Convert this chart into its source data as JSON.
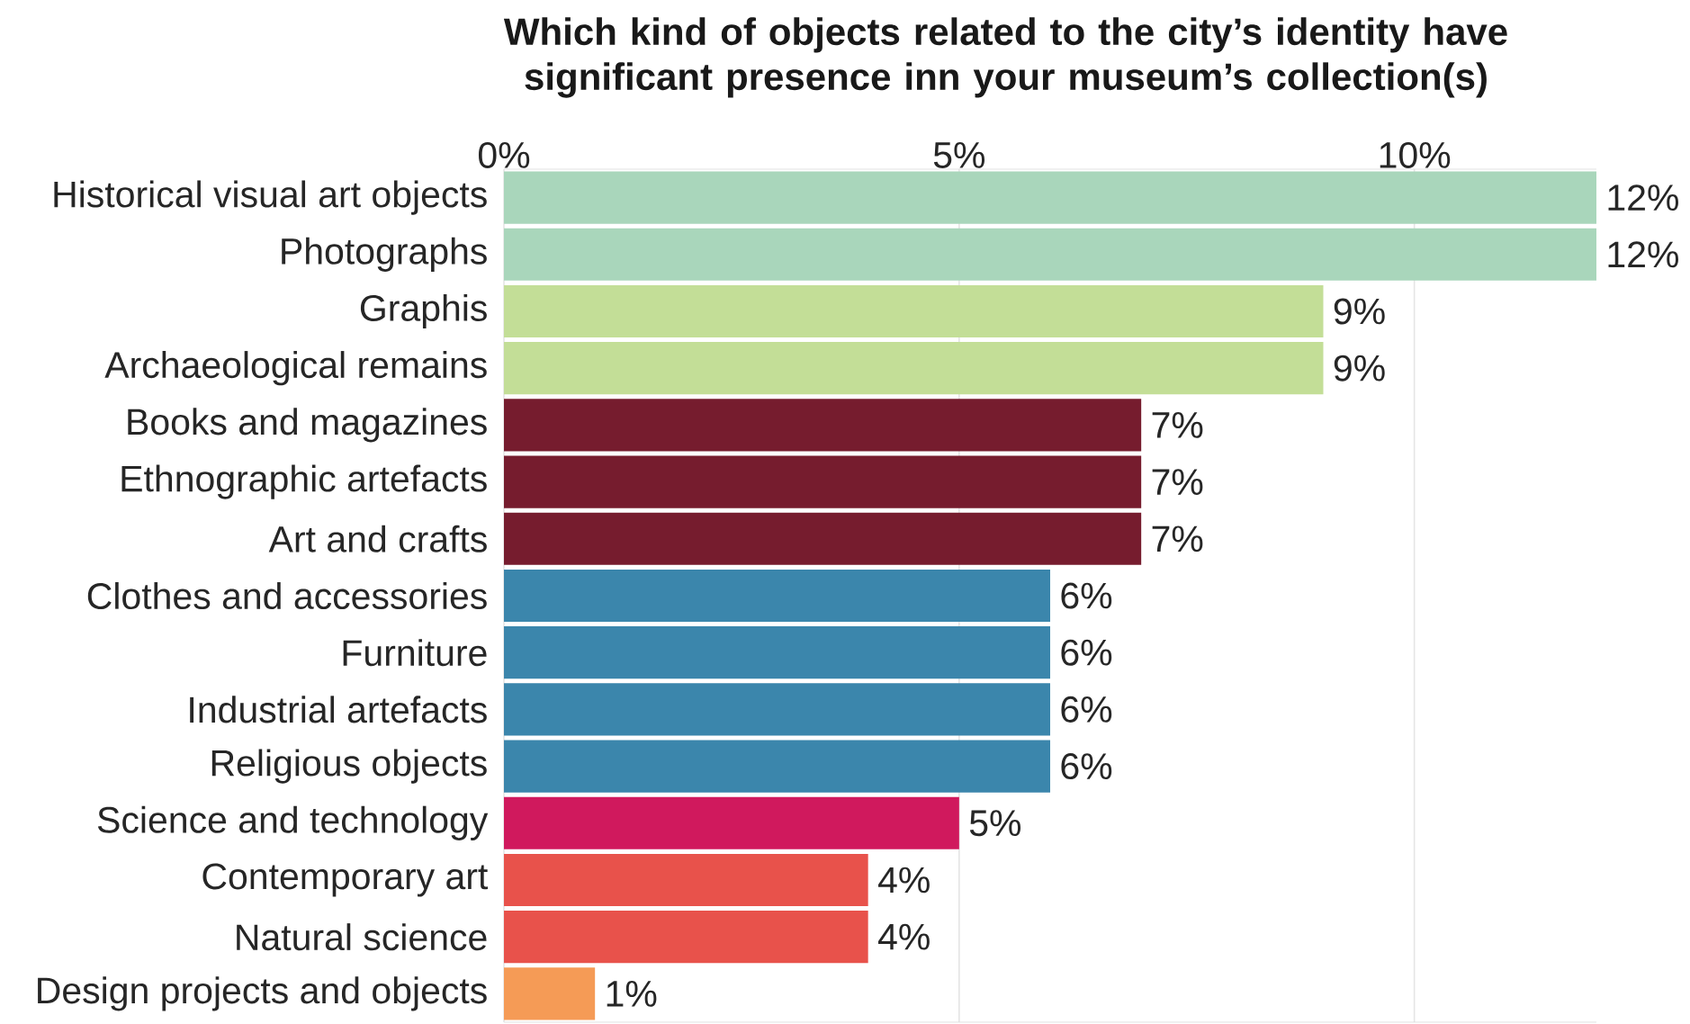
{
  "chart_data": {
    "type": "bar",
    "orientation": "horizontal",
    "title": "Which kind of objects related to the city’s identity have significant presence inn your museum’s collection(s)",
    "categories": [
      "Historical visual art objects",
      "Photographs",
      "Graphis",
      "Archaeological remains",
      "Books and magazines",
      "Ethnographic artefacts",
      "Art and crafts",
      "Clothes and accessories",
      "Furniture",
      "Industrial artefacts",
      "Religious objects",
      "Science and technology",
      "Contemporary art",
      "Natural science",
      "Design projects and objects"
    ],
    "values": [
      12,
      12,
      9,
      9,
      7,
      7,
      7,
      6,
      6,
      6,
      6,
      5,
      4,
      4,
      1
    ],
    "value_labels": [
      "12%",
      "12%",
      "9%",
      "9%",
      "7%",
      "7%",
      "7%",
      "6%",
      "6%",
      "6%",
      "6%",
      "5%",
      "4%",
      "4%",
      "1%"
    ],
    "colors": [
      "#a9d6bb",
      "#a9d6bb",
      "#c3de97",
      "#c3de97",
      "#761c2e",
      "#761c2e",
      "#761c2e",
      "#3b86ac",
      "#3b86ac",
      "#3b86ac",
      "#3b86ac",
      "#d0195d",
      "#e8524b",
      "#e8524b",
      "#f59b56"
    ],
    "xlim": [
      0,
      12
    ],
    "xticks": [
      {
        "value": 0,
        "label": "0%"
      },
      {
        "value": 5,
        "label": "5%"
      },
      {
        "value": 10,
        "label": "10%"
      }
    ],
    "grid": "x"
  }
}
